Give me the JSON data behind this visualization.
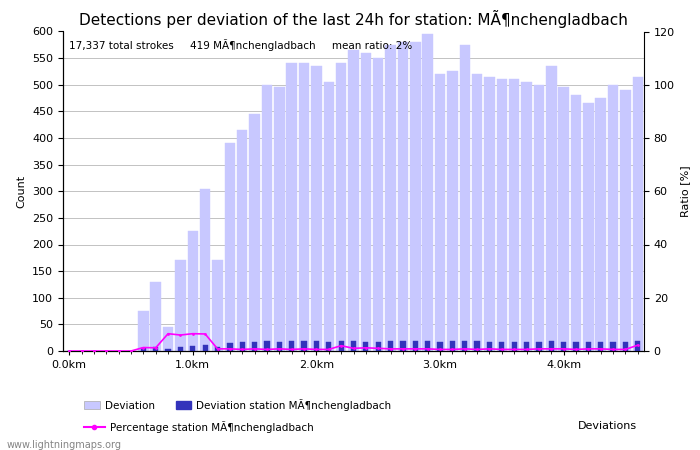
{
  "title": "Detections per deviation of the last 24h for station: MÃ¶nchengladbach",
  "annotation": "17,337 total strokes     419 MÃ¶nchengladbach     mean ratio: 2%",
  "xlabel": "Deviations",
  "ylabel_left": "Count",
  "ylabel_right": "Ratio [%]",
  "ylim_left": [
    0,
    600
  ],
  "ylim_right": [
    0,
    120
  ],
  "yticks_left": [
    0,
    50,
    100,
    150,
    200,
    250,
    300,
    350,
    400,
    450,
    500,
    550,
    600
  ],
  "yticks_right": [
    0,
    20,
    40,
    60,
    80,
    100,
    120
  ],
  "xtick_labels": [
    "0.0km",
    "1.0km",
    "2.0km",
    "3.0km",
    "4.0km"
  ],
  "xtick_positions": [
    0,
    10,
    20,
    30,
    40
  ],
  "bar_color_light": "#c8c8ff",
  "bar_color_dark": "#3333bb",
  "line_color": "#ff00ff",
  "background_color": "#ffffff",
  "watermark": "www.lightningmaps.org",
  "total_bars": 47,
  "deviation_values": [
    0,
    0,
    0,
    0,
    0,
    0,
    75,
    130,
    45,
    170,
    225,
    305,
    170,
    390,
    415,
    445,
    500,
    495,
    540,
    540,
    535,
    505,
    540,
    565,
    560,
    550,
    575,
    580,
    580,
    595,
    520,
    525,
    575,
    520,
    515,
    510,
    510,
    505,
    500,
    535,
    495,
    480,
    465,
    475,
    500,
    490,
    515
  ],
  "station_values": [
    0,
    0,
    0,
    0,
    0,
    0,
    5,
    8,
    3,
    8,
    10,
    12,
    8,
    15,
    16,
    17,
    18,
    17,
    18,
    18,
    18,
    17,
    18,
    18,
    17,
    17,
    18,
    18,
    18,
    19,
    17,
    18,
    18,
    18,
    17,
    17,
    17,
    17,
    17,
    18,
    17,
    17,
    16,
    16,
    17,
    17,
    18
  ],
  "percentage_values": [
    0,
    0,
    0,
    0,
    0,
    0,
    1.3,
    1.2,
    6.5,
    6.0,
    6.5,
    6.4,
    0.8,
    0.8,
    0.6,
    0.8,
    0.6,
    0.8,
    0.6,
    0.8,
    0.6,
    0.6,
    2.0,
    1.0,
    1.2,
    1.0,
    0.8,
    0.8,
    0.8,
    0.8,
    0.6,
    0.6,
    0.8,
    0.6,
    0.8,
    0.6,
    0.6,
    0.6,
    0.8,
    0.8,
    0.8,
    0.6,
    0.8,
    0.8,
    0.6,
    0.6,
    2.2
  ],
  "legend_labels": [
    "Deviation",
    "Deviation station MÃ¶nchengladbach",
    "Percentage station MÃ¶nchengladbach"
  ],
  "title_fontsize": 11,
  "axis_fontsize": 8,
  "annotation_fontsize": 7.5
}
